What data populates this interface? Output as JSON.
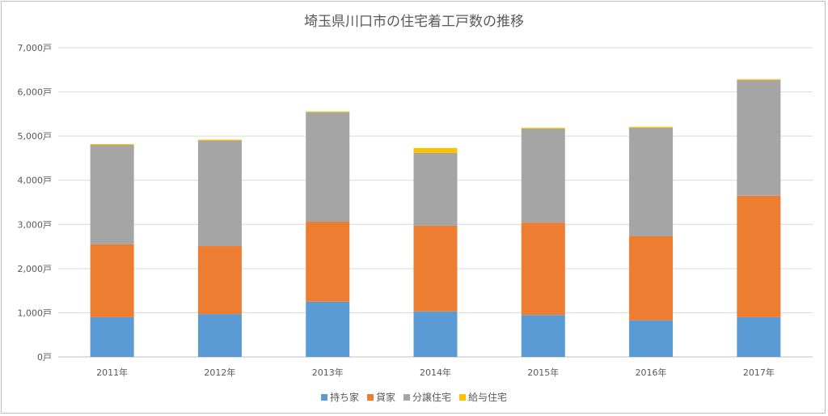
{
  "chart_data": {
    "type": "bar",
    "stacked": true,
    "title": "埼玉県川口市の住宅着工戸数の推移",
    "categories": [
      "2011年",
      "2012年",
      "2013年",
      "2014年",
      "2015年",
      "2016年",
      "2017年"
    ],
    "y_tick_labels": [
      "0戸",
      "1,000戸",
      "2,000戸",
      "3,000戸",
      "4,000戸",
      "5,000戸",
      "6,000戸",
      "7,000戸"
    ],
    "ylim": [
      0,
      7000
    ],
    "y_unit": "戸",
    "grid": true,
    "legend_position": "bottom",
    "series": [
      {
        "name": "持ち家",
        "color": "#5b9bd5",
        "values": [
          900,
          970,
          1250,
          1030,
          950,
          830,
          900
        ]
      },
      {
        "name": "貸家",
        "color": "#ed7d31",
        "values": [
          1650,
          1540,
          1810,
          1940,
          2090,
          1900,
          2750
        ]
      },
      {
        "name": "分譲住宅",
        "color": "#a5a5a5",
        "values": [
          2250,
          2390,
          2480,
          1650,
          2130,
          2460,
          2620
        ]
      },
      {
        "name": "給与住宅",
        "color": "#ffc000",
        "values": [
          20,
          20,
          20,
          110,
          20,
          20,
          20
        ]
      }
    ]
  }
}
